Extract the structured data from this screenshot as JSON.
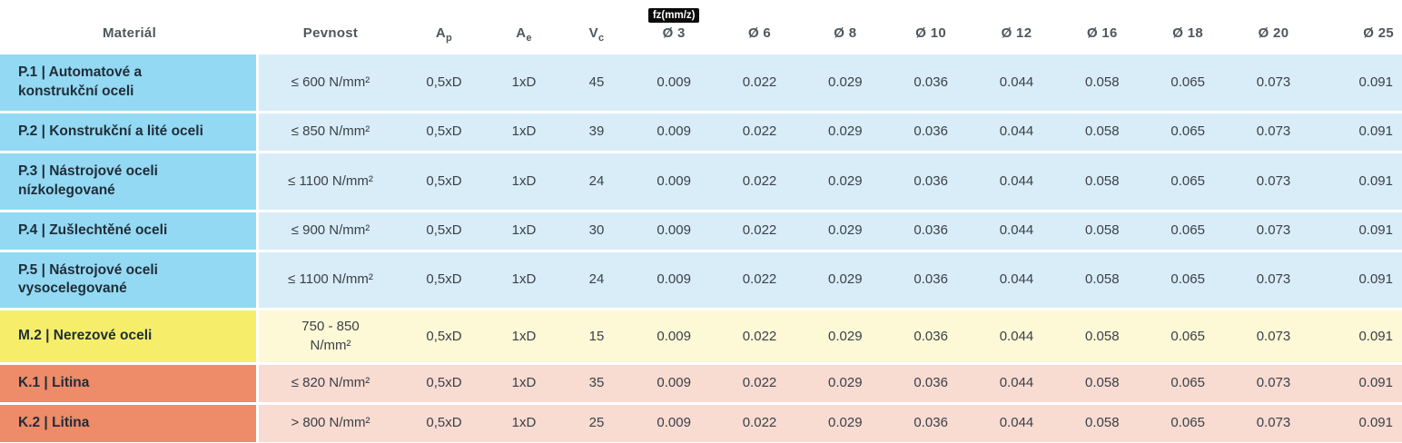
{
  "table": {
    "header": {
      "material": "Materiál",
      "pevnost": "Pevnost",
      "ap": {
        "main": "A",
        "sub": "p"
      },
      "ae": {
        "main": "A",
        "sub": "e"
      },
      "vc": {
        "main": "V",
        "sub": "c"
      },
      "fz_badge": "fz(mm/z)",
      "diameters": [
        "Ø 3",
        "Ø 6",
        "Ø 8",
        "Ø 10",
        "Ø 12",
        "Ø 16",
        "Ø 18",
        "Ø 20",
        "Ø 25"
      ]
    },
    "rows": [
      {
        "group": "P",
        "material": "P.1 | Automatové a\nkonstrukční oceli",
        "pevnost": "≤ 600 N/mm²",
        "ap": "0,5xD",
        "ae": "1xD",
        "vc": "45",
        "fz": [
          "0.009",
          "0.022",
          "0.029",
          "0.036",
          "0.044",
          "0.058",
          "0.065",
          "0.073",
          "0.091"
        ]
      },
      {
        "group": "P",
        "material": "P.2 | Konstrukční a lité oceli",
        "pevnost": "≤ 850 N/mm²",
        "ap": "0,5xD",
        "ae": "1xD",
        "vc": "39",
        "fz": [
          "0.009",
          "0.022",
          "0.029",
          "0.036",
          "0.044",
          "0.058",
          "0.065",
          "0.073",
          "0.091"
        ]
      },
      {
        "group": "P",
        "material": "P.3 | Nástrojové oceli\nnízkolegované",
        "pevnost": "≤ 1100 N/mm²",
        "ap": "0,5xD",
        "ae": "1xD",
        "vc": "24",
        "fz": [
          "0.009",
          "0.022",
          "0.029",
          "0.036",
          "0.044",
          "0.058",
          "0.065",
          "0.073",
          "0.091"
        ]
      },
      {
        "group": "P",
        "material": "P.4 | Zušlechtěné oceli",
        "pevnost": "≤ 900 N/mm²",
        "ap": "0,5xD",
        "ae": "1xD",
        "vc": "30",
        "fz": [
          "0.009",
          "0.022",
          "0.029",
          "0.036",
          "0.044",
          "0.058",
          "0.065",
          "0.073",
          "0.091"
        ]
      },
      {
        "group": "P",
        "material": "P.5 | Nástrojové oceli\nvysocelegované",
        "pevnost": "≤ 1100 N/mm²",
        "ap": "0,5xD",
        "ae": "1xD",
        "vc": "24",
        "fz": [
          "0.009",
          "0.022",
          "0.029",
          "0.036",
          "0.044",
          "0.058",
          "0.065",
          "0.073",
          "0.091"
        ]
      },
      {
        "group": "M",
        "material": "M.2 | Nerezové oceli",
        "pevnost": "750 - 850\nN/mm²",
        "ap": "0,5xD",
        "ae": "1xD",
        "vc": "15",
        "fz": [
          "0.009",
          "0.022",
          "0.029",
          "0.036",
          "0.044",
          "0.058",
          "0.065",
          "0.073",
          "0.091"
        ]
      },
      {
        "group": "K",
        "material": "K.1 | Litina",
        "pevnost": "≤ 820 N/mm²",
        "ap": "0,5xD",
        "ae": "1xD",
        "vc": "35",
        "fz": [
          "0.009",
          "0.022",
          "0.029",
          "0.036",
          "0.044",
          "0.058",
          "0.065",
          "0.073",
          "0.091"
        ]
      },
      {
        "group": "K",
        "material": "K.2 | Litina",
        "pevnost": "> 800 N/mm²",
        "ap": "0,5xD",
        "ae": "1xD",
        "vc": "25",
        "fz": [
          "0.009",
          "0.022",
          "0.029",
          "0.036",
          "0.044",
          "0.058",
          "0.065",
          "0.073",
          "0.091"
        ]
      }
    ]
  },
  "colors": {
    "p_label": "#93d9f3",
    "p_row": "#d9edf8",
    "m_label": "#f6ee6b",
    "m_row": "#fdf8d6",
    "k_label": "#ee8b69",
    "k_row": "#f8dbd1",
    "badge_bg": "#0a0a0a",
    "badge_text": "#ffffff",
    "header_text": "#4e575f",
    "cell_text": "#3b4148",
    "material_text": "#1f2d38",
    "row_gap": "#ffffff"
  }
}
